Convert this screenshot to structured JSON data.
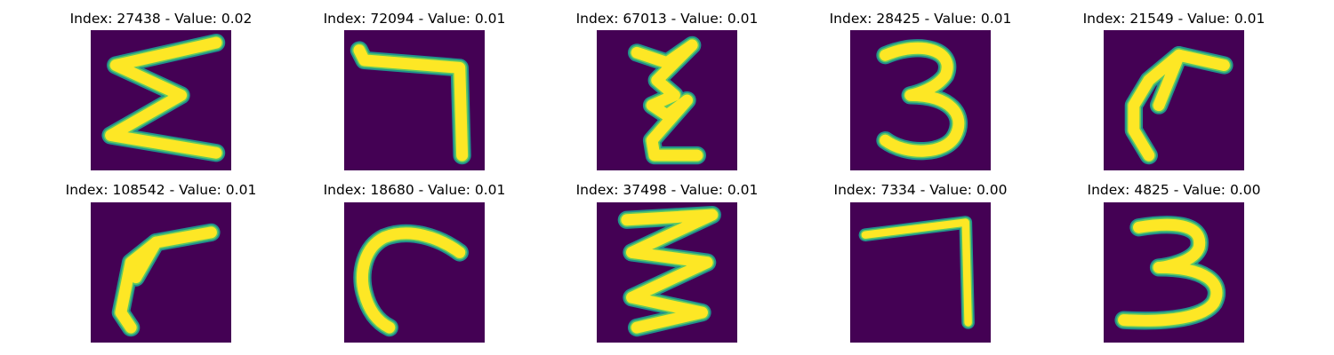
{
  "background_color": "#440154",
  "glyph_colors": {
    "edge": "#21918c",
    "mid": "#5ec962",
    "core": "#fde725"
  },
  "panels": [
    {
      "title": "Index: 27438 - Value: 0.02"
    },
    {
      "title": "Index: 72094 - Value: 0.01"
    },
    {
      "title": "Index: 67013 - Value: 0.01"
    },
    {
      "title": "Index: 28425 - Value: 0.01"
    },
    {
      "title": "Index: 21549 - Value: 0.01"
    },
    {
      "title": "Index: 108542 - Value: 0.01"
    },
    {
      "title": "Index: 18680 - Value: 0.01"
    },
    {
      "title": "Index: 37498 - Value: 0.01"
    },
    {
      "title": "Index: 7334 - Value: 0.00"
    },
    {
      "title": "Index: 4825 - Value: 0.00"
    }
  ]
}
